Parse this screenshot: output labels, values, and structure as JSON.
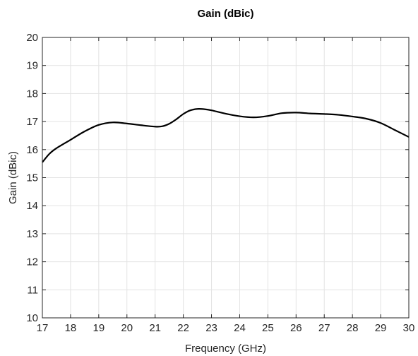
{
  "chart_data": {
    "type": "line",
    "title": "Gain (dBic)",
    "xlabel": "Frequency (GHz)",
    "ylabel": "Gain (dBic)",
    "xlim": [
      17,
      30
    ],
    "ylim": [
      10,
      20
    ],
    "xticks": [
      "17",
      "18",
      "19",
      "20",
      "21",
      "22",
      "23",
      "24",
      "25",
      "26",
      "27",
      "28",
      "29",
      "30"
    ],
    "yticks": [
      "10",
      "11",
      "12",
      "13",
      "14",
      "15",
      "16",
      "17",
      "18",
      "19",
      "20"
    ],
    "grid": true,
    "legend": "none",
    "series": [
      {
        "color": "#000000",
        "x": [
          17.0,
          17.25,
          17.5,
          18.0,
          18.5,
          19.0,
          19.5,
          20.0,
          20.5,
          21.0,
          21.25,
          21.5,
          21.75,
          22.0,
          22.25,
          22.5,
          22.75,
          23.0,
          23.5,
          24.0,
          24.5,
          25.0,
          25.5,
          26.0,
          26.5,
          27.0,
          27.5,
          28.0,
          28.5,
          29.0,
          29.5,
          30.0
        ],
        "y": [
          15.55,
          15.85,
          16.05,
          16.35,
          16.65,
          16.88,
          16.97,
          16.93,
          16.87,
          16.82,
          16.83,
          16.92,
          17.08,
          17.27,
          17.4,
          17.45,
          17.44,
          17.4,
          17.28,
          17.19,
          17.15,
          17.2,
          17.3,
          17.32,
          17.29,
          17.27,
          17.24,
          17.18,
          17.1,
          16.95,
          16.7,
          16.45
        ]
      }
    ]
  }
}
